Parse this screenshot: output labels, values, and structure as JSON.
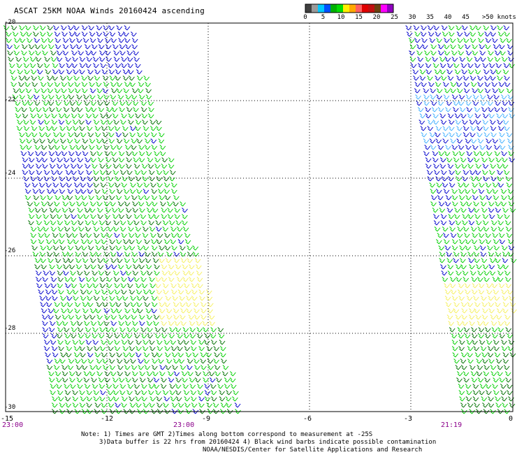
{
  "title": "ASCAT 25KM NOAA Winds 20160424 ascending",
  "legend": {
    "unit_label": ">50 knots",
    "labels": [
      "0",
      "5",
      "10",
      "15",
      "20",
      "25",
      "30",
      "35",
      "40",
      "45"
    ],
    "colors": [
      "#404040",
      "#9a9a9a",
      "#00c8ff",
      "#0050ff",
      "#00b000",
      "#00dd00",
      "#ffee00",
      "#ffa800",
      "#ff6060",
      "#e00000",
      "#c01010",
      "#6b4010",
      "#ff00ff",
      "#9000c0"
    ]
  },
  "axes": {
    "lat_labels": [
      "-20",
      "-22",
      "-24",
      "-26",
      "-28",
      "-30"
    ],
    "lon_labels": [
      "-15",
      "-12",
      "-9",
      "-6",
      "-3",
      "0"
    ]
  },
  "times": [
    "23:00",
    "23:00",
    "21:19"
  ],
  "notes": [
    "Note: 1) Times are GMT 2)Times along bottom correspond to measurement at -25S",
    "3)Data buffer is 22 hrs from 20160424 4) Black wind barbs indicate possible contamination",
    "NOAA/NESDIS/Center for Satellite Applications and Research"
  ],
  "barb_colors": {
    "blue": "#0000cc",
    "green": "#00d000",
    "dark_green": "#007000",
    "yellow": "#f6f060",
    "cyan": "#40b0ff"
  }
}
